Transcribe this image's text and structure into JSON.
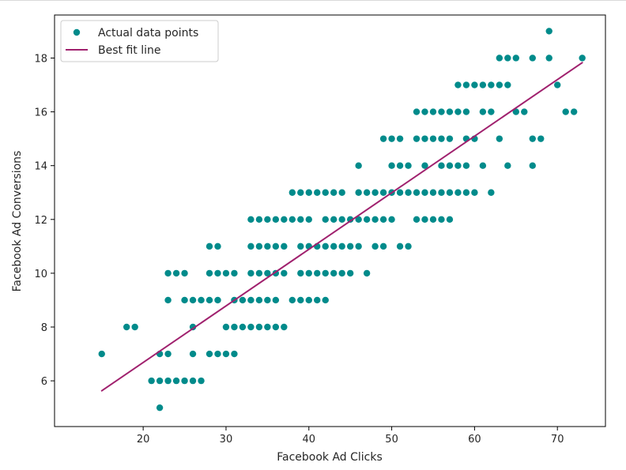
{
  "chart_data": {
    "type": "scatter",
    "title": "",
    "xlabel": "Facebook Ad Clicks",
    "ylabel": "Facebook Ad Conversions",
    "xlim": [
      9.3,
      75.8
    ],
    "ylim": [
      4.3,
      19.6
    ],
    "xticks": [
      20,
      30,
      40,
      50,
      60,
      70
    ],
    "yticks": [
      6,
      8,
      10,
      12,
      14,
      16,
      18
    ],
    "grid": false,
    "legend_position": "top-left",
    "legend": [
      {
        "label": "Actual data points",
        "kind": "marker",
        "color": "#008b8b"
      },
      {
        "label": "Best fit line",
        "kind": "line",
        "color": "#a0216e"
      }
    ],
    "series": [
      {
        "name": "Actual data points",
        "type": "scatter",
        "color": "#008b8b",
        "points": [
          [
            15,
            7
          ],
          [
            18,
            8
          ],
          [
            19,
            8
          ],
          [
            21,
            6
          ],
          [
            22,
            6
          ],
          [
            22,
            7
          ],
          [
            22,
            5
          ],
          [
            23,
            6
          ],
          [
            23,
            7
          ],
          [
            23,
            9
          ],
          [
            23,
            10
          ],
          [
            24,
            6
          ],
          [
            24,
            10
          ],
          [
            25,
            6
          ],
          [
            25,
            9
          ],
          [
            25,
            10
          ],
          [
            26,
            6
          ],
          [
            26,
            7
          ],
          [
            26,
            8
          ],
          [
            26,
            9
          ],
          [
            27,
            6
          ],
          [
            27,
            9
          ],
          [
            28,
            7
          ],
          [
            28,
            9
          ],
          [
            28,
            10
          ],
          [
            28,
            11
          ],
          [
            29,
            7
          ],
          [
            29,
            9
          ],
          [
            29,
            10
          ],
          [
            29,
            11
          ],
          [
            30,
            7
          ],
          [
            30,
            8
          ],
          [
            30,
            10
          ],
          [
            31,
            7
          ],
          [
            31,
            8
          ],
          [
            31,
            9
          ],
          [
            31,
            10
          ],
          [
            32,
            8
          ],
          [
            32,
            9
          ],
          [
            33,
            8
          ],
          [
            33,
            9
          ],
          [
            33,
            10
          ],
          [
            33,
            11
          ],
          [
            33,
            12
          ],
          [
            34,
            8
          ],
          [
            34,
            9
          ],
          [
            34,
            10
          ],
          [
            34,
            11
          ],
          [
            34,
            12
          ],
          [
            35,
            8
          ],
          [
            35,
            9
          ],
          [
            35,
            10
          ],
          [
            35,
            11
          ],
          [
            35,
            12
          ],
          [
            36,
            8
          ],
          [
            36,
            9
          ],
          [
            36,
            10
          ],
          [
            36,
            11
          ],
          [
            36,
            12
          ],
          [
            37,
            8
          ],
          [
            37,
            10
          ],
          [
            37,
            11
          ],
          [
            37,
            12
          ],
          [
            38,
            9
          ],
          [
            38,
            12
          ],
          [
            38,
            13
          ],
          [
            39,
            9
          ],
          [
            39,
            10
          ],
          [
            39,
            11
          ],
          [
            39,
            12
          ],
          [
            39,
            13
          ],
          [
            40,
            9
          ],
          [
            40,
            10
          ],
          [
            40,
            11
          ],
          [
            40,
            12
          ],
          [
            40,
            13
          ],
          [
            41,
            9
          ],
          [
            41,
            10
          ],
          [
            41,
            11
          ],
          [
            41,
            13
          ],
          [
            42,
            9
          ],
          [
            42,
            10
          ],
          [
            42,
            11
          ],
          [
            42,
            12
          ],
          [
            42,
            13
          ],
          [
            43,
            10
          ],
          [
            43,
            11
          ],
          [
            43,
            12
          ],
          [
            43,
            13
          ],
          [
            44,
            10
          ],
          [
            44,
            11
          ],
          [
            44,
            12
          ],
          [
            44,
            13
          ],
          [
            45,
            10
          ],
          [
            45,
            11
          ],
          [
            45,
            12
          ],
          [
            46,
            11
          ],
          [
            46,
            12
          ],
          [
            46,
            13
          ],
          [
            46,
            14
          ],
          [
            47,
            10
          ],
          [
            47,
            12
          ],
          [
            47,
            13
          ],
          [
            48,
            11
          ],
          [
            48,
            12
          ],
          [
            48,
            13
          ],
          [
            49,
            11
          ],
          [
            49,
            12
          ],
          [
            49,
            13
          ],
          [
            49,
            15
          ],
          [
            50,
            12
          ],
          [
            50,
            13
          ],
          [
            50,
            14
          ],
          [
            50,
            15
          ],
          [
            51,
            11
          ],
          [
            51,
            13
          ],
          [
            51,
            14
          ],
          [
            51,
            15
          ],
          [
            52,
            11
          ],
          [
            52,
            13
          ],
          [
            52,
            14
          ],
          [
            53,
            12
          ],
          [
            53,
            13
          ],
          [
            53,
            15
          ],
          [
            53,
            16
          ],
          [
            54,
            12
          ],
          [
            54,
            13
          ],
          [
            54,
            14
          ],
          [
            54,
            15
          ],
          [
            54,
            16
          ],
          [
            55,
            12
          ],
          [
            55,
            13
          ],
          [
            55,
            15
          ],
          [
            55,
            16
          ],
          [
            56,
            12
          ],
          [
            56,
            13
          ],
          [
            56,
            14
          ],
          [
            56,
            15
          ],
          [
            56,
            16
          ],
          [
            57,
            12
          ],
          [
            57,
            13
          ],
          [
            57,
            14
          ],
          [
            57,
            15
          ],
          [
            57,
            16
          ],
          [
            58,
            13
          ],
          [
            58,
            14
          ],
          [
            58,
            16
          ],
          [
            58,
            17
          ],
          [
            59,
            13
          ],
          [
            59,
            14
          ],
          [
            59,
            15
          ],
          [
            59,
            16
          ],
          [
            59,
            17
          ],
          [
            60,
            13
          ],
          [
            60,
            15
          ],
          [
            60,
            17
          ],
          [
            61,
            14
          ],
          [
            61,
            16
          ],
          [
            61,
            17
          ],
          [
            62,
            13
          ],
          [
            62,
            16
          ],
          [
            62,
            17
          ],
          [
            63,
            15
          ],
          [
            63,
            17
          ],
          [
            63,
            18
          ],
          [
            64,
            14
          ],
          [
            64,
            17
          ],
          [
            64,
            18
          ],
          [
            65,
            16
          ],
          [
            65,
            18
          ],
          [
            66,
            16
          ],
          [
            67,
            14
          ],
          [
            67,
            15
          ],
          [
            67,
            18
          ],
          [
            68,
            15
          ],
          [
            69,
            18
          ],
          [
            69,
            19
          ],
          [
            70,
            17
          ],
          [
            71,
            16
          ],
          [
            72,
            16
          ],
          [
            73,
            18
          ]
        ]
      },
      {
        "name": "Best fit line",
        "type": "line",
        "color": "#a0216e",
        "x": [
          15,
          73
        ],
        "y": [
          5.63,
          17.83
        ]
      }
    ]
  }
}
